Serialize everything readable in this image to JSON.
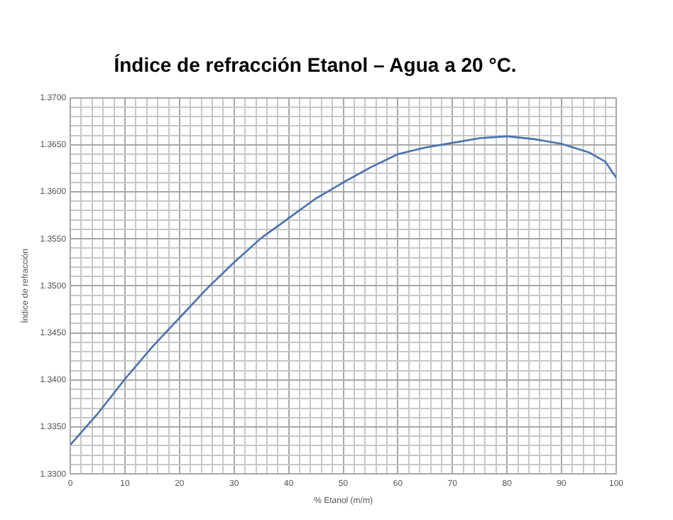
{
  "chart_data": {
    "type": "line",
    "title": "Índice de refracción Etanol – Agua a 20 °C.",
    "xlabel": "% Etanol (m/m)",
    "ylabel": "Índice de refracción",
    "x": [
      0,
      5,
      10,
      15,
      20,
      25,
      30,
      35,
      40,
      45,
      50,
      55,
      60,
      65,
      70,
      75,
      80,
      85,
      90,
      95,
      98,
      100
    ],
    "series": [
      {
        "color": "#4a72b0",
        "values": [
          1.3331,
          1.3364,
          1.3401,
          1.3435,
          1.3466,
          1.3497,
          1.3525,
          1.3551,
          1.3572,
          1.3593,
          1.361,
          1.3626,
          1.364,
          1.3647,
          1.3652,
          1.3657,
          1.3659,
          1.3656,
          1.3651,
          1.3642,
          1.3632,
          1.3615
        ]
      }
    ],
    "xlim": [
      0,
      100
    ],
    "ylim": [
      1.33,
      1.37
    ],
    "xticks": [
      0,
      {
        "value": 2,
        "label": null
      },
      {
        "value": 4,
        "label": null
      },
      {
        "value": 6,
        "label": null
      },
      {
        "value": 8,
        "label": null
      },
      10,
      {
        "value": 12,
        "label": null
      },
      {
        "value": 14,
        "label": null
      },
      {
        "value": 16,
        "label": null
      },
      {
        "value": 18,
        "label": null
      },
      20,
      {
        "value": 22,
        "label": null
      },
      {
        "value": 24,
        "label": null
      },
      {
        "value": 26,
        "label": null
      },
      {
        "value": 28,
        "label": null
      },
      30,
      {
        "value": 32,
        "label": null
      },
      {
        "value": 34,
        "label": null
      },
      {
        "value": 36,
        "label": null
      },
      {
        "value": 38,
        "label": null
      },
      40,
      {
        "value": 42,
        "label": null
      },
      {
        "value": 44,
        "label": null
      },
      {
        "value": 46,
        "label": null
      },
      {
        "value": 48,
        "label": null
      },
      50,
      {
        "value": 52,
        "label": null
      },
      {
        "value": 54,
        "label": null
      },
      {
        "value": 56,
        "label": null
      },
      {
        "value": 58,
        "label": null
      },
      60,
      {
        "value": 62,
        "label": null
      },
      {
        "value": 64,
        "label": null
      },
      {
        "value": 66,
        "label": null
      },
      {
        "value": 68,
        "label": null
      },
      70,
      {
        "value": 72,
        "label": null
      },
      {
        "value": 74,
        "label": null
      },
      {
        "value": 76,
        "label": null
      },
      {
        "value": 78,
        "label": null
      },
      80,
      {
        "value": 82,
        "label": null
      },
      {
        "value": 84,
        "label": null
      },
      {
        "value": 86,
        "label": null
      },
      {
        "value": 88,
        "label": null
      },
      90,
      {
        "value": 92,
        "label": null
      },
      {
        "value": 94,
        "label": null
      },
      {
        "value": 96,
        "label": null
      },
      {
        "value": 98,
        "label": null
      },
      100
    ],
    "yticks": [
      {
        "value": 1.33,
        "label": "1.3300"
      },
      {
        "value": 1.331,
        "label": null
      },
      {
        "value": 1.332,
        "label": null
      },
      {
        "value": 1.333,
        "label": null
      },
      {
        "value": 1.334,
        "label": null
      },
      {
        "value": 1.335,
        "label": "1.3350"
      },
      {
        "value": 1.336,
        "label": null
      },
      {
        "value": 1.337,
        "label": null
      },
      {
        "value": 1.338,
        "label": null
      },
      {
        "value": 1.339,
        "label": null
      },
      {
        "value": 1.34,
        "label": "1.3400"
      },
      {
        "value": 1.341,
        "label": null
      },
      {
        "value": 1.342,
        "label": null
      },
      {
        "value": 1.343,
        "label": null
      },
      {
        "value": 1.344,
        "label": null
      },
      {
        "value": 1.345,
        "label": "1.3450"
      },
      {
        "value": 1.346,
        "label": null
      },
      {
        "value": 1.347,
        "label": null
      },
      {
        "value": 1.348,
        "label": null
      },
      {
        "value": 1.349,
        "label": null
      },
      {
        "value": 1.35,
        "label": "1.3500"
      },
      {
        "value": 1.351,
        "label": null
      },
      {
        "value": 1.352,
        "label": null
      },
      {
        "value": 1.353,
        "label": null
      },
      {
        "value": 1.354,
        "label": null
      },
      {
        "value": 1.355,
        "label": "1.3550"
      },
      {
        "value": 1.356,
        "label": null
      },
      {
        "value": 1.357,
        "label": null
      },
      {
        "value": 1.358,
        "label": null
      },
      {
        "value": 1.359,
        "label": null
      },
      {
        "value": 1.36,
        "label": "1.3600"
      },
      {
        "value": 1.361,
        "label": null
      },
      {
        "value": 1.362,
        "label": null
      },
      {
        "value": 1.363,
        "label": null
      },
      {
        "value": 1.364,
        "label": null
      },
      {
        "value": 1.365,
        "label": "1.3650"
      },
      {
        "value": 1.366,
        "label": null
      },
      {
        "value": 1.367,
        "label": null
      },
      {
        "value": 1.368,
        "label": null
      },
      {
        "value": 1.369,
        "label": null
      },
      {
        "value": 1.37,
        "label": "1.3700"
      }
    ],
    "grid": true,
    "legend": false,
    "marker": "none",
    "line_style": "solid"
  }
}
